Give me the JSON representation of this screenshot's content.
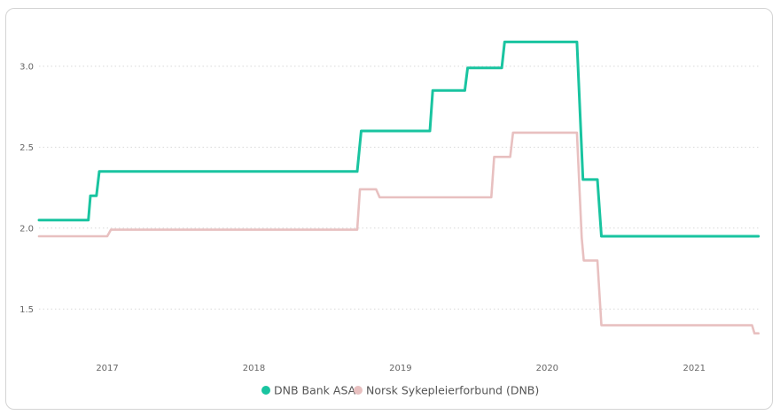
{
  "chart_data": {
    "type": "line",
    "title": "",
    "xlabel": "",
    "ylabel": "",
    "ylim": [
      1.25,
      3.3
    ],
    "xlim": [
      "2016-07-15",
      "2021-06-15"
    ],
    "x_ticks": [
      {
        "label": "2017",
        "date": "2017-01-01"
      },
      {
        "label": "2018",
        "date": "2018-01-01"
      },
      {
        "label": "2019",
        "date": "2019-01-01"
      },
      {
        "label": "2020",
        "date": "2020-01-01"
      },
      {
        "label": "2021",
        "date": "2021-01-01"
      }
    ],
    "y_ticks": [
      {
        "label": "1.5",
        "value": 1.5
      },
      {
        "label": "2.0",
        "value": 2.0
      },
      {
        "label": "2.5",
        "value": 2.5
      },
      {
        "label": "3.0",
        "value": 3.0
      }
    ],
    "grid": true,
    "legend_position": "bottom-center",
    "series": [
      {
        "name": "DNB Bank ASA",
        "color": "#19c4a0",
        "points": [
          [
            "2016-07-15",
            2.05
          ],
          [
            "2016-11-15",
            2.05
          ],
          [
            "2016-11-20",
            2.2
          ],
          [
            "2016-12-05",
            2.2
          ],
          [
            "2016-12-12",
            2.35
          ],
          [
            "2018-09-15",
            2.35
          ],
          [
            "2018-09-25",
            2.6
          ],
          [
            "2019-03-15",
            2.6
          ],
          [
            "2019-03-22",
            2.85
          ],
          [
            "2019-06-10",
            2.85
          ],
          [
            "2019-06-17",
            2.99
          ],
          [
            "2019-09-10",
            2.99
          ],
          [
            "2019-09-17",
            3.15
          ],
          [
            "2020-03-15",
            3.15
          ],
          [
            "2020-03-30",
            2.3
          ],
          [
            "2020-05-05",
            2.3
          ],
          [
            "2020-05-15",
            1.95
          ],
          [
            "2021-06-10",
            1.95
          ]
        ]
      },
      {
        "name": "Norsk Sykepleierforbund (DNB)",
        "color": "#e8c0c0",
        "points": [
          [
            "2016-07-15",
            1.95
          ],
          [
            "2017-01-01",
            1.95
          ],
          [
            "2017-01-10",
            1.99
          ],
          [
            "2018-09-15",
            1.99
          ],
          [
            "2018-09-22",
            2.24
          ],
          [
            "2018-11-01",
            2.24
          ],
          [
            "2018-11-10",
            2.19
          ],
          [
            "2019-08-15",
            2.19
          ],
          [
            "2019-08-22",
            2.44
          ],
          [
            "2019-10-01",
            2.44
          ],
          [
            "2019-10-08",
            2.59
          ],
          [
            "2020-03-15",
            2.59
          ],
          [
            "2020-03-27",
            1.94
          ],
          [
            "2020-04-01",
            1.8
          ],
          [
            "2020-05-05",
            1.8
          ],
          [
            "2020-05-15",
            1.4
          ],
          [
            "2021-05-25",
            1.4
          ],
          [
            "2021-05-31",
            1.35
          ],
          [
            "2021-06-10",
            1.35
          ]
        ]
      }
    ]
  }
}
